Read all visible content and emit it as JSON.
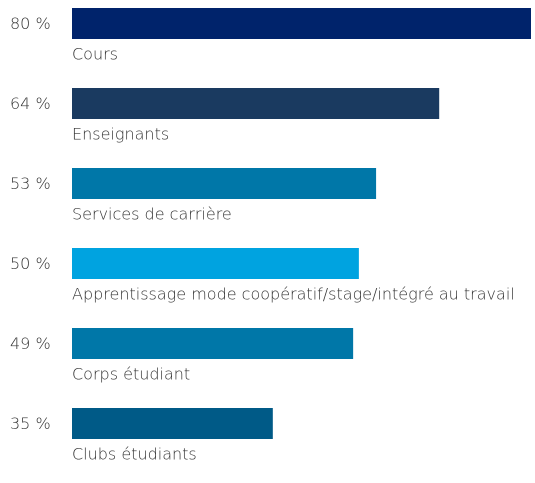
{
  "chart_data": {
    "type": "bar",
    "orientation": "horizontal",
    "categories": [
      "Cours",
      "Enseignants",
      "Services de carrière",
      "Apprentissage mode coopératif/stage/intégré au travail",
      "Corps étudiant",
      "Clubs étudiants"
    ],
    "values": [
      80,
      64,
      53,
      50,
      49,
      35
    ],
    "value_labels": [
      "80 %",
      "64 %",
      "53 %",
      "50 %",
      "49 %",
      "35 %"
    ],
    "colors": [
      "#00236b",
      "#1a3a60",
      "#0077a8",
      "#00a3e0",
      "#0077a8",
      "#005a87"
    ]
  }
}
